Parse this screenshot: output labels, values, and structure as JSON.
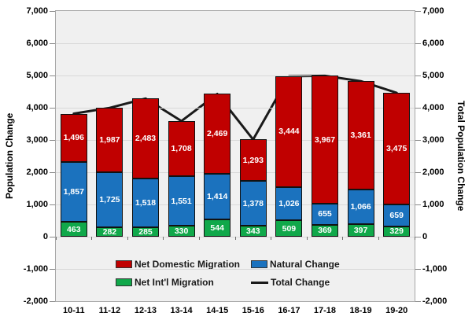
{
  "chart_data": {
    "type": "bar",
    "stacked": true,
    "title": "",
    "categories": [
      "10-11",
      "11-12",
      "12-13",
      "13-14",
      "14-15",
      "15-16",
      "16-17",
      "17-18",
      "18-19",
      "19-20"
    ],
    "series": [
      {
        "name": "Net Int'l Migration",
        "color": "#10A84A",
        "values": [
          463,
          282,
          285,
          330,
          544,
          343,
          509,
          369,
          397,
          329
        ]
      },
      {
        "name": "Natural Change",
        "color": "#1B72BE",
        "values": [
          1857,
          1725,
          1518,
          1551,
          1414,
          1378,
          1026,
          655,
          1066,
          659
        ]
      },
      {
        "name": "Net Domestic Migration",
        "color": "#C00000",
        "values": [
          1496,
          1987,
          2483,
          1708,
          2469,
          1293,
          3444,
          3967,
          3361,
          3475
        ]
      }
    ],
    "line_series": {
      "name": "Total Change",
      "color": "#1A1A1A",
      "values": [
        3816,
        3994,
        4286,
        3589,
        4427,
        3014,
        4979,
        4991,
        4824,
        4463
      ]
    },
    "ylabel_left": "Population Change",
    "ylabel_right": "Total Population Change",
    "ylim": [
      -2000,
      7000
    ],
    "yticks": [
      7000,
      6000,
      5000,
      4000,
      3000,
      2000,
      1000,
      0,
      -1000,
      -2000
    ],
    "grid": true,
    "legend_position": "bottom-inside",
    "legend": [
      {
        "label": "Net Domestic Migration",
        "swatch": "rect",
        "color": "#C00000"
      },
      {
        "label": "Natural Change",
        "swatch": "rect",
        "color": "#1B72BE"
      },
      {
        "label": "Net Int'l Migration",
        "swatch": "rect",
        "color": "#10A84A"
      },
      {
        "label": "Total Change",
        "swatch": "line",
        "color": "#1A1A1A"
      }
    ]
  }
}
